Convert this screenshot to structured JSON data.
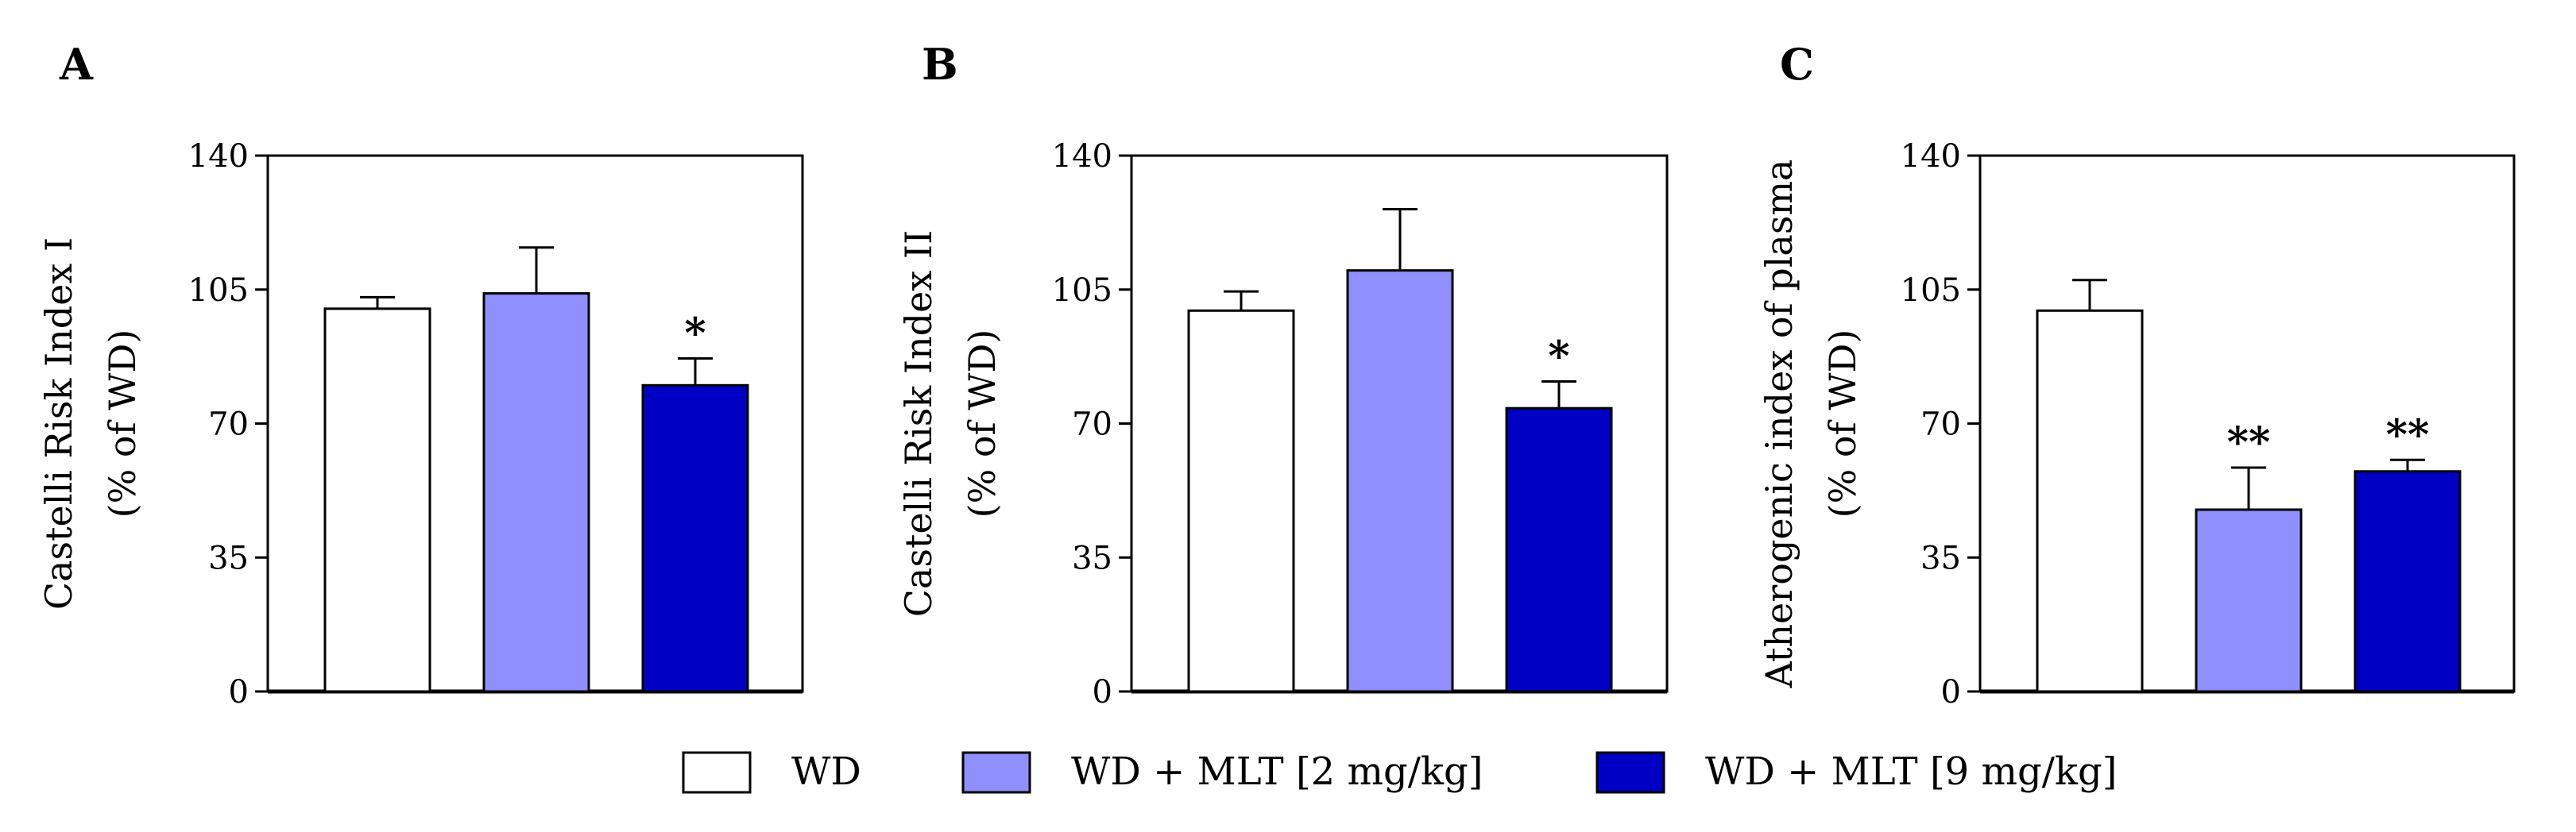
{
  "figure": {
    "legend": [
      {
        "label": "WD",
        "color": "#ffffff"
      },
      {
        "label": "WD + MLT [2 mg/kg]",
        "color": "#8f8ffd"
      },
      {
        "label": "WD + MLT [9 mg/kg]",
        "color": "#0000c4"
      }
    ]
  },
  "chart_data": [
    {
      "type": "bar",
      "panel_label": "A",
      "categories": [
        "WD",
        "WD + MLT [2 mg/kg]",
        "WD + MLT [9 mg/kg]"
      ],
      "values": [
        100,
        104,
        80
      ],
      "errors": [
        3,
        12,
        7
      ],
      "significance": [
        "",
        "",
        "*"
      ],
      "colors": [
        "#ffffff",
        "#8f8ffd",
        "#0000c4"
      ],
      "ylabel_lines": [
        "Castelli  Risk Index I",
        "(% of WD)"
      ],
      "ylim": [
        0,
        140
      ],
      "yticks": [
        0,
        35,
        70,
        105,
        140
      ],
      "grid": false,
      "legend": "bottom"
    },
    {
      "type": "bar",
      "panel_label": "B",
      "categories": [
        "WD",
        "WD + MLT [2 mg/kg]",
        "WD + MLT [9 mg/kg]"
      ],
      "values": [
        99.5,
        110,
        74
      ],
      "errors": [
        5,
        16,
        7
      ],
      "significance": [
        "",
        "",
        "*"
      ],
      "colors": [
        "#ffffff",
        "#8f8ffd",
        "#0000c4"
      ],
      "ylabel_lines": [
        "Castelli  Risk Index II",
        "(% of WD)"
      ],
      "ylim": [
        0,
        140
      ],
      "yticks": [
        0,
        35,
        70,
        105,
        140
      ],
      "grid": false,
      "legend": "bottom"
    },
    {
      "type": "bar",
      "panel_label": "C",
      "categories": [
        "WD",
        "WD + MLT [2 mg/kg]",
        "WD + MLT [9 mg/kg]"
      ],
      "values": [
        99.5,
        47.5,
        57.5
      ],
      "errors": [
        8,
        11,
        3
      ],
      "significance": [
        "",
        "**",
        "**"
      ],
      "colors": [
        "#ffffff",
        "#8f8ffd",
        "#0000c4"
      ],
      "ylabel_lines": [
        "Atherogenic index of plasma",
        "(% of WD)"
      ],
      "ylim": [
        0,
        140
      ],
      "yticks": [
        0,
        35,
        70,
        105,
        140
      ],
      "grid": false,
      "legend": "bottom"
    }
  ]
}
